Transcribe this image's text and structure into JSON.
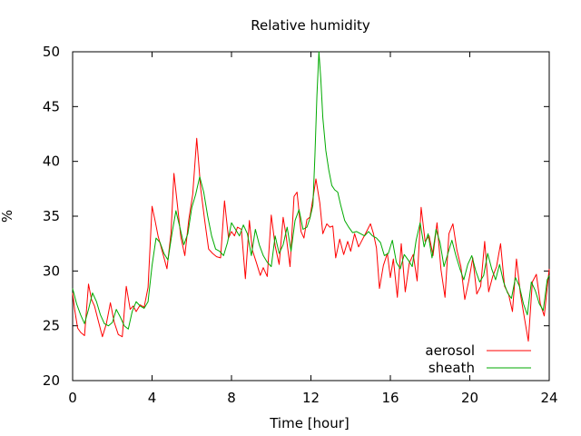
{
  "chart_data": {
    "type": "line",
    "title": "Relative humidity",
    "xlabel": "Time [hour]",
    "ylabel": "%",
    "xlim": [
      0,
      24
    ],
    "ylim": [
      20,
      50
    ],
    "xticks": [
      0,
      4,
      8,
      12,
      16,
      20,
      24
    ],
    "yticks": [
      20,
      25,
      30,
      35,
      40,
      45,
      50
    ],
    "xtick_labels": [
      "0",
      "4",
      "8",
      "12",
      "16",
      "20",
      "24"
    ],
    "ytick_labels": [
      "20",
      "25",
      "30",
      "35",
      "40",
      "45",
      "50"
    ],
    "grid": false,
    "legend_position": "bottom-right",
    "series": [
      {
        "name": "aerosol",
        "color": "#ff0000",
        "x": [
          0,
          0.1,
          0.25,
          0.4,
          0.6,
          0.8,
          0.95,
          1.1,
          1.3,
          1.5,
          1.7,
          1.9,
          2.1,
          2.3,
          2.5,
          2.7,
          2.9,
          3.05,
          3.2,
          3.4,
          3.6,
          3.8,
          4.0,
          4.15,
          4.3,
          4.5,
          4.75,
          4.95,
          5.1,
          5.25,
          5.45,
          5.65,
          5.85,
          6.05,
          6.25,
          6.45,
          6.65,
          6.85,
          7.05,
          7.25,
          7.45,
          7.65,
          7.85,
          8.0,
          8.15,
          8.3,
          8.5,
          8.7,
          8.9,
          9.05,
          9.25,
          9.45,
          9.6,
          9.8,
          10.0,
          10.2,
          10.4,
          10.6,
          10.75,
          10.95,
          11.15,
          11.3,
          11.5,
          11.65,
          11.8,
          11.95,
          12.1,
          12.25,
          12.45,
          12.6,
          12.8,
          12.95,
          13.1,
          13.25,
          13.45,
          13.65,
          13.85,
          14.0,
          14.2,
          14.4,
          14.6,
          14.8,
          15.0,
          15.15,
          15.3,
          15.45,
          15.65,
          15.85,
          16.0,
          16.15,
          16.35,
          16.55,
          16.75,
          16.95,
          17.15,
          17.35,
          17.55,
          17.75,
          17.95,
          18.15,
          18.35,
          18.55,
          18.75,
          18.95,
          19.15,
          19.35,
          19.55,
          19.75,
          19.95,
          20.15,
          20.35,
          20.55,
          20.75,
          20.95,
          21.15,
          21.35,
          21.55,
          21.75,
          21.95,
          22.15,
          22.35,
          22.55,
          22.75,
          22.95,
          23.15,
          23.35,
          23.55,
          23.75,
          24.0
        ],
        "y": [
          28.0,
          26.5,
          24.8,
          24.4,
          24.1,
          28.8,
          27.4,
          26.8,
          25.4,
          24.0,
          25.2,
          27.1,
          25.3,
          24.2,
          24.0,
          28.6,
          26.5,
          26.8,
          26.3,
          26.9,
          26.7,
          28.5,
          35.9,
          34.6,
          33.2,
          31.9,
          30.2,
          33.4,
          38.9,
          36.5,
          33.1,
          31.4,
          34.7,
          37.0,
          42.1,
          37.5,
          34.6,
          32.0,
          31.6,
          31.3,
          31.2,
          36.4,
          33.0,
          33.6,
          33.2,
          34.0,
          33.8,
          29.3,
          34.6,
          31.9,
          30.8,
          29.6,
          30.3,
          29.5,
          35.1,
          32.3,
          30.6,
          34.9,
          33.2,
          30.4,
          36.8,
          37.2,
          33.6,
          33.0,
          34.7,
          34.9,
          36.6,
          38.4,
          36.2,
          33.4,
          34.3,
          34.0,
          34.1,
          31.2,
          32.9,
          31.5,
          32.7,
          31.8,
          33.4,
          32.2,
          32.9,
          33.6,
          34.3,
          33.4,
          32.1,
          28.4,
          30.5,
          31.6,
          29.4,
          31.1,
          27.6,
          32.5,
          28.1,
          30.7,
          31.5,
          29.1,
          35.8,
          32.7,
          33.2,
          31.4,
          34.4,
          30.1,
          27.6,
          33.4,
          34.3,
          31.9,
          30.4,
          27.4,
          29.1,
          31.2,
          27.9,
          28.6,
          32.7,
          28.1,
          29.5,
          30.4,
          32.5,
          28.6,
          27.9,
          26.3,
          31.1,
          27.9,
          25.7,
          23.6,
          29.0,
          29.7,
          27.0,
          25.9,
          30.2
        ]
      },
      {
        "name": "sheath",
        "color": "#00aa00",
        "x": [
          0,
          0.2,
          0.4,
          0.6,
          0.8,
          1.0,
          1.2,
          1.4,
          1.6,
          1.8,
          2.0,
          2.2,
          2.4,
          2.6,
          2.8,
          3.0,
          3.2,
          3.4,
          3.6,
          3.8,
          4.0,
          4.2,
          4.4,
          4.6,
          4.8,
          5.0,
          5.2,
          5.4,
          5.6,
          5.8,
          6.0,
          6.2,
          6.4,
          6.6,
          6.8,
          7.0,
          7.2,
          7.4,
          7.6,
          7.8,
          8.0,
          8.2,
          8.4,
          8.6,
          8.8,
          9.0,
          9.2,
          9.4,
          9.6,
          9.8,
          10.0,
          10.2,
          10.4,
          10.6,
          10.8,
          11.0,
          11.2,
          11.4,
          11.6,
          11.8,
          11.95,
          12.1,
          12.2,
          12.3,
          12.4,
          12.5,
          12.6,
          12.75,
          12.9,
          13.05,
          13.2,
          13.35,
          13.5,
          13.7,
          13.9,
          14.1,
          14.3,
          14.5,
          14.7,
          14.9,
          15.1,
          15.3,
          15.5,
          15.7,
          15.9,
          16.1,
          16.3,
          16.5,
          16.7,
          16.9,
          17.1,
          17.3,
          17.5,
          17.7,
          17.9,
          18.1,
          18.3,
          18.5,
          18.7,
          18.9,
          19.1,
          19.3,
          19.5,
          19.7,
          19.9,
          20.1,
          20.3,
          20.5,
          20.7,
          20.9,
          21.1,
          21.3,
          21.5,
          21.7,
          21.9,
          22.1,
          22.3,
          22.5,
          22.7,
          22.9,
          23.1,
          23.3,
          23.5,
          23.7,
          23.9,
          24.0
        ],
        "y": [
          28.4,
          27.0,
          26.0,
          25.2,
          26.5,
          28.0,
          27.2,
          26.0,
          25.2,
          25.0,
          25.3,
          26.5,
          25.8,
          25.0,
          24.7,
          26.3,
          27.2,
          26.8,
          26.6,
          27.2,
          30.5,
          33.0,
          32.6,
          31.6,
          31.0,
          33.4,
          35.5,
          34.0,
          32.4,
          33.4,
          35.8,
          37.0,
          38.6,
          37.2,
          35.0,
          33.2,
          32.0,
          31.8,
          31.4,
          32.6,
          34.4,
          33.8,
          33.2,
          34.2,
          33.4,
          31.4,
          33.8,
          32.4,
          31.4,
          30.8,
          30.4,
          33.2,
          31.6,
          32.4,
          34.0,
          31.8,
          34.6,
          35.6,
          33.8,
          34.0,
          34.8,
          36.0,
          40.5,
          46.0,
          50.0,
          47.5,
          44.0,
          41.0,
          39.2,
          37.8,
          37.4,
          37.2,
          36.0,
          34.6,
          34.0,
          33.5,
          33.6,
          33.4,
          33.2,
          33.6,
          33.2,
          33.0,
          32.6,
          31.4,
          31.6,
          32.8,
          30.8,
          30.2,
          31.5,
          31.0,
          30.4,
          32.8,
          34.4,
          32.2,
          33.4,
          31.2,
          33.8,
          32.6,
          30.4,
          31.6,
          32.8,
          31.4,
          30.2,
          29.2,
          30.6,
          31.4,
          30.0,
          29.0,
          29.6,
          31.6,
          30.2,
          29.2,
          30.6,
          29.0,
          28.0,
          27.5,
          29.4,
          28.6,
          27.0,
          26.0,
          29.0,
          28.2,
          27.0,
          26.4,
          29.2,
          29.6
        ]
      }
    ]
  }
}
